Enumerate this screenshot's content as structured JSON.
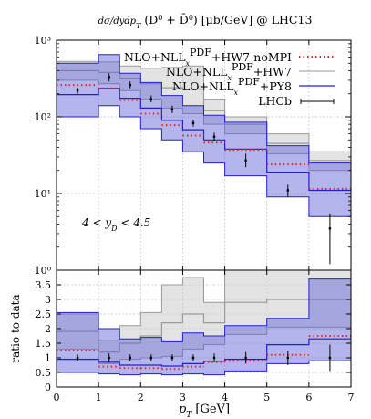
{
  "chart_data": [
    {
      "type": "line",
      "title": "dσ/(dy dp_T) (D⁰ + D̄⁰) [μb/GeV]  @ LHC13",
      "yscale": "log",
      "xlim": [
        0,
        7
      ],
      "ylim": [
        1,
        1000
      ],
      "yticklabels": [
        "10⁰",
        "10¹",
        "10²",
        "10³"
      ],
      "yticks": [
        1,
        10,
        100,
        1000
      ],
      "grid": true,
      "annotation": "4 < y_D < 4.5",
      "legend_position": "top-right",
      "bins": [
        0,
        1,
        1.5,
        2,
        2.5,
        3,
        3.5,
        4,
        5,
        6,
        7
      ],
      "series": [
        {
          "name": "NLO+NLL_x^PDF+HW7-noMPI",
          "style": "dotted-step",
          "color": "#e8202a",
          "values": [
            260,
            235,
            165,
            110,
            78,
            57,
            46,
            37,
            24,
            11.5,
            6.2
          ]
        },
        {
          "name": "NLO+NLL_x^PDF+HW7",
          "style": "band",
          "color": "#8f8f8f",
          "upper": [
            530,
            520,
            460,
            430,
            440,
            460,
            170,
            100,
            60,
            35,
            24
          ],
          "lower": [
            300,
            270,
            220,
            170,
            130,
            110,
            80,
            60,
            33,
            20,
            10.5
          ],
          "values": [
            400,
            380,
            320,
            270,
            240,
            230,
            120,
            80,
            45,
            27,
            16
          ]
        },
        {
          "name": "NLO+NLL_x^PDF+PY8",
          "style": "band",
          "color": "#2020cc",
          "upper": [
            500,
            650,
            370,
            280,
            190,
            140,
            105,
            85,
            42,
            25,
            12
          ],
          "lower": [
            100,
            140,
            100,
            70,
            50,
            35,
            25,
            17,
            9,
            5,
            2.6
          ],
          "values": [
            195,
            235,
            175,
            130,
            90,
            68,
            50,
            38,
            19,
            11,
            5.8
          ]
        },
        {
          "name": "LHCb",
          "style": "errorbar",
          "color": "#000000",
          "x": [
            0.5,
            1.25,
            1.75,
            2.25,
            2.75,
            3.25,
            3.75,
            4.5,
            5.5,
            6.5
          ],
          "y": [
            220,
            330,
            260,
            170,
            125,
            83,
            55,
            27,
            11,
            3.5
          ],
          "yerr_lo": [
            200,
            290,
            235,
            155,
            112,
            75,
            48,
            22,
            9,
            1.2
          ],
          "yerr_hi": [
            240,
            370,
            290,
            190,
            140,
            92,
            62,
            33,
            13,
            5.5
          ]
        }
      ]
    },
    {
      "type": "line",
      "xlabel": "p_T [GeV]",
      "ylabel": "ratio to data",
      "xlim": [
        0,
        7
      ],
      "ylim": [
        0,
        4
      ],
      "xticks": [
        0,
        1,
        2,
        3,
        4,
        5,
        6,
        7
      ],
      "yticks": [
        0,
        0.5,
        1,
        1.5,
        2,
        2.5,
        3,
        3.5
      ],
      "yticklabels": [
        "0",
        "0.5",
        "1",
        "1.5",
        "2",
        "2.5",
        "3",
        "3.5"
      ],
      "grid": true,
      "bins": [
        0,
        1,
        1.5,
        2,
        2.5,
        3,
        3.5,
        4,
        5,
        6,
        7
      ],
      "series": [
        {
          "name": "NLO+NLL_x^PDF+HW7-noMPI",
          "style": "dotted-step",
          "color": "#e8202a",
          "values": [
            1.25,
            0.7,
            0.65,
            0.65,
            0.62,
            0.7,
            0.85,
            0.9,
            1.1,
            1.75,
            1.75
          ]
        },
        {
          "name": "NLO+NLL_x^PDF+HW7",
          "style": "band",
          "color": "#8f8f8f",
          "upper": [
            2.5,
            1.6,
            2.1,
            2.55,
            3.5,
            3.75,
            2.9,
            4.0,
            4.0,
            4.0,
            4.0
          ],
          "lower": [
            1.3,
            0.8,
            0.95,
            1.0,
            1.05,
            1.3,
            1.45,
            1.8,
            2.05,
            2.05,
            2.05
          ],
          "values": [
            1.9,
            1.2,
            1.5,
            1.75,
            2.2,
            2.5,
            2.2,
            2.9,
            3.0,
            3.0,
            3.0
          ]
        },
        {
          "name": "NLO+NLL_x^PDF+PY8",
          "style": "band",
          "color": "#2020cc",
          "upper": [
            2.55,
            2.0,
            1.65,
            1.7,
            1.55,
            1.85,
            1.75,
            2.1,
            2.35,
            3.7,
            3.7
          ],
          "lower": [
            0.5,
            0.45,
            0.42,
            0.45,
            0.42,
            0.45,
            0.42,
            0.55,
            0.8,
            0.9,
            0.9
          ],
          "values": [
            0.95,
            0.85,
            0.75,
            0.75,
            0.72,
            0.8,
            0.88,
            0.95,
            1.45,
            1.65,
            1.65
          ]
        },
        {
          "name": "LHCb",
          "style": "errorbar",
          "color": "#000000",
          "x": [
            0.5,
            1.25,
            1.75,
            2.25,
            2.75,
            3.25,
            3.75,
            4.5,
            5.5,
            6.5
          ],
          "y": [
            1,
            1,
            1,
            1,
            1,
            1,
            1,
            1,
            1,
            1
          ],
          "yerr_lo": [
            0.88,
            0.85,
            0.88,
            0.88,
            0.88,
            0.88,
            0.85,
            0.8,
            0.75,
            0.55
          ],
          "yerr_hi": [
            1.12,
            1.15,
            1.12,
            1.12,
            1.12,
            1.12,
            1.15,
            1.2,
            1.25,
            1.45
          ]
        }
      ]
    }
  ]
}
